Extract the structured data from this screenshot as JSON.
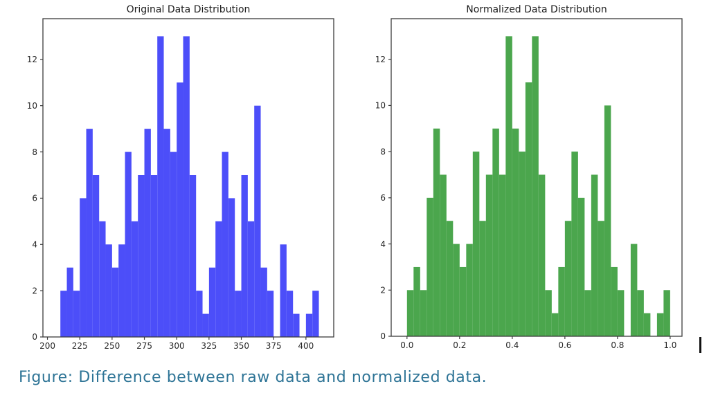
{
  "page": {
    "background": "#ffffff"
  },
  "caption": {
    "text": "Figure: Difference between raw data and normalized data.",
    "color": "#2e7496"
  },
  "chart_data": [
    {
      "type": "bar",
      "subtype": "histogram",
      "title": "Original Data Distribution",
      "color": "#4c4ef9",
      "bin_start": 210,
      "bin_width": 5,
      "values": [
        2,
        3,
        2,
        6,
        9,
        7,
        5,
        4,
        3,
        4,
        8,
        5,
        7,
        9,
        7,
        13,
        9,
        8,
        11,
        13,
        7,
        2,
        1,
        3,
        5,
        8,
        6,
        2,
        7,
        5,
        10,
        3,
        2,
        0,
        4,
        2,
        1,
        0,
        1,
        2
      ],
      "x_ticks": [
        200,
        225,
        250,
        275,
        300,
        325,
        350,
        375,
        400
      ],
      "x_tick_labels": [
        "200",
        "225",
        "250",
        "275",
        "300",
        "325",
        "350",
        "375",
        "400"
      ],
      "y_ticks": [
        0,
        2,
        4,
        6,
        8,
        10,
        12
      ],
      "y_tick_labels": [
        "0",
        "2",
        "4",
        "6",
        "8",
        "10",
        "12"
      ],
      "xlim": [
        196.5,
        421.5
      ],
      "ylim": [
        0,
        13.76
      ],
      "xlabel": "",
      "ylabel": "",
      "grid": false,
      "legend": null
    },
    {
      "type": "bar",
      "subtype": "histogram",
      "title": "Normalized Data Distribution",
      "color": "#4ba64d",
      "bin_start": 0,
      "bin_width": 0.025,
      "values": [
        2,
        3,
        2,
        6,
        9,
        7,
        5,
        4,
        3,
        4,
        8,
        5,
        7,
        9,
        7,
        13,
        9,
        8,
        11,
        13,
        7,
        2,
        1,
        3,
        5,
        8,
        6,
        2,
        7,
        5,
        10,
        3,
        2,
        0,
        4,
        2,
        1,
        0,
        1,
        2
      ],
      "x_ticks": [
        0.0,
        0.2,
        0.4,
        0.6,
        0.8,
        1.0
      ],
      "x_tick_labels": [
        "0.0",
        "0.2",
        "0.4",
        "0.6",
        "0.8",
        "1.0"
      ],
      "y_ticks": [
        0,
        2,
        4,
        6,
        8,
        10,
        12
      ],
      "y_tick_labels": [
        "0",
        "2",
        "4",
        "6",
        "8",
        "10",
        "12"
      ],
      "xlim": [
        -0.06,
        1.045
      ],
      "ylim": [
        0,
        13.76
      ],
      "xlabel": "",
      "ylabel": "",
      "grid": false,
      "legend": null
    }
  ],
  "axis_style": {
    "spine_color": "#3b3b3b",
    "tick_color": "#3b3b3b",
    "label_color": "#262626"
  }
}
